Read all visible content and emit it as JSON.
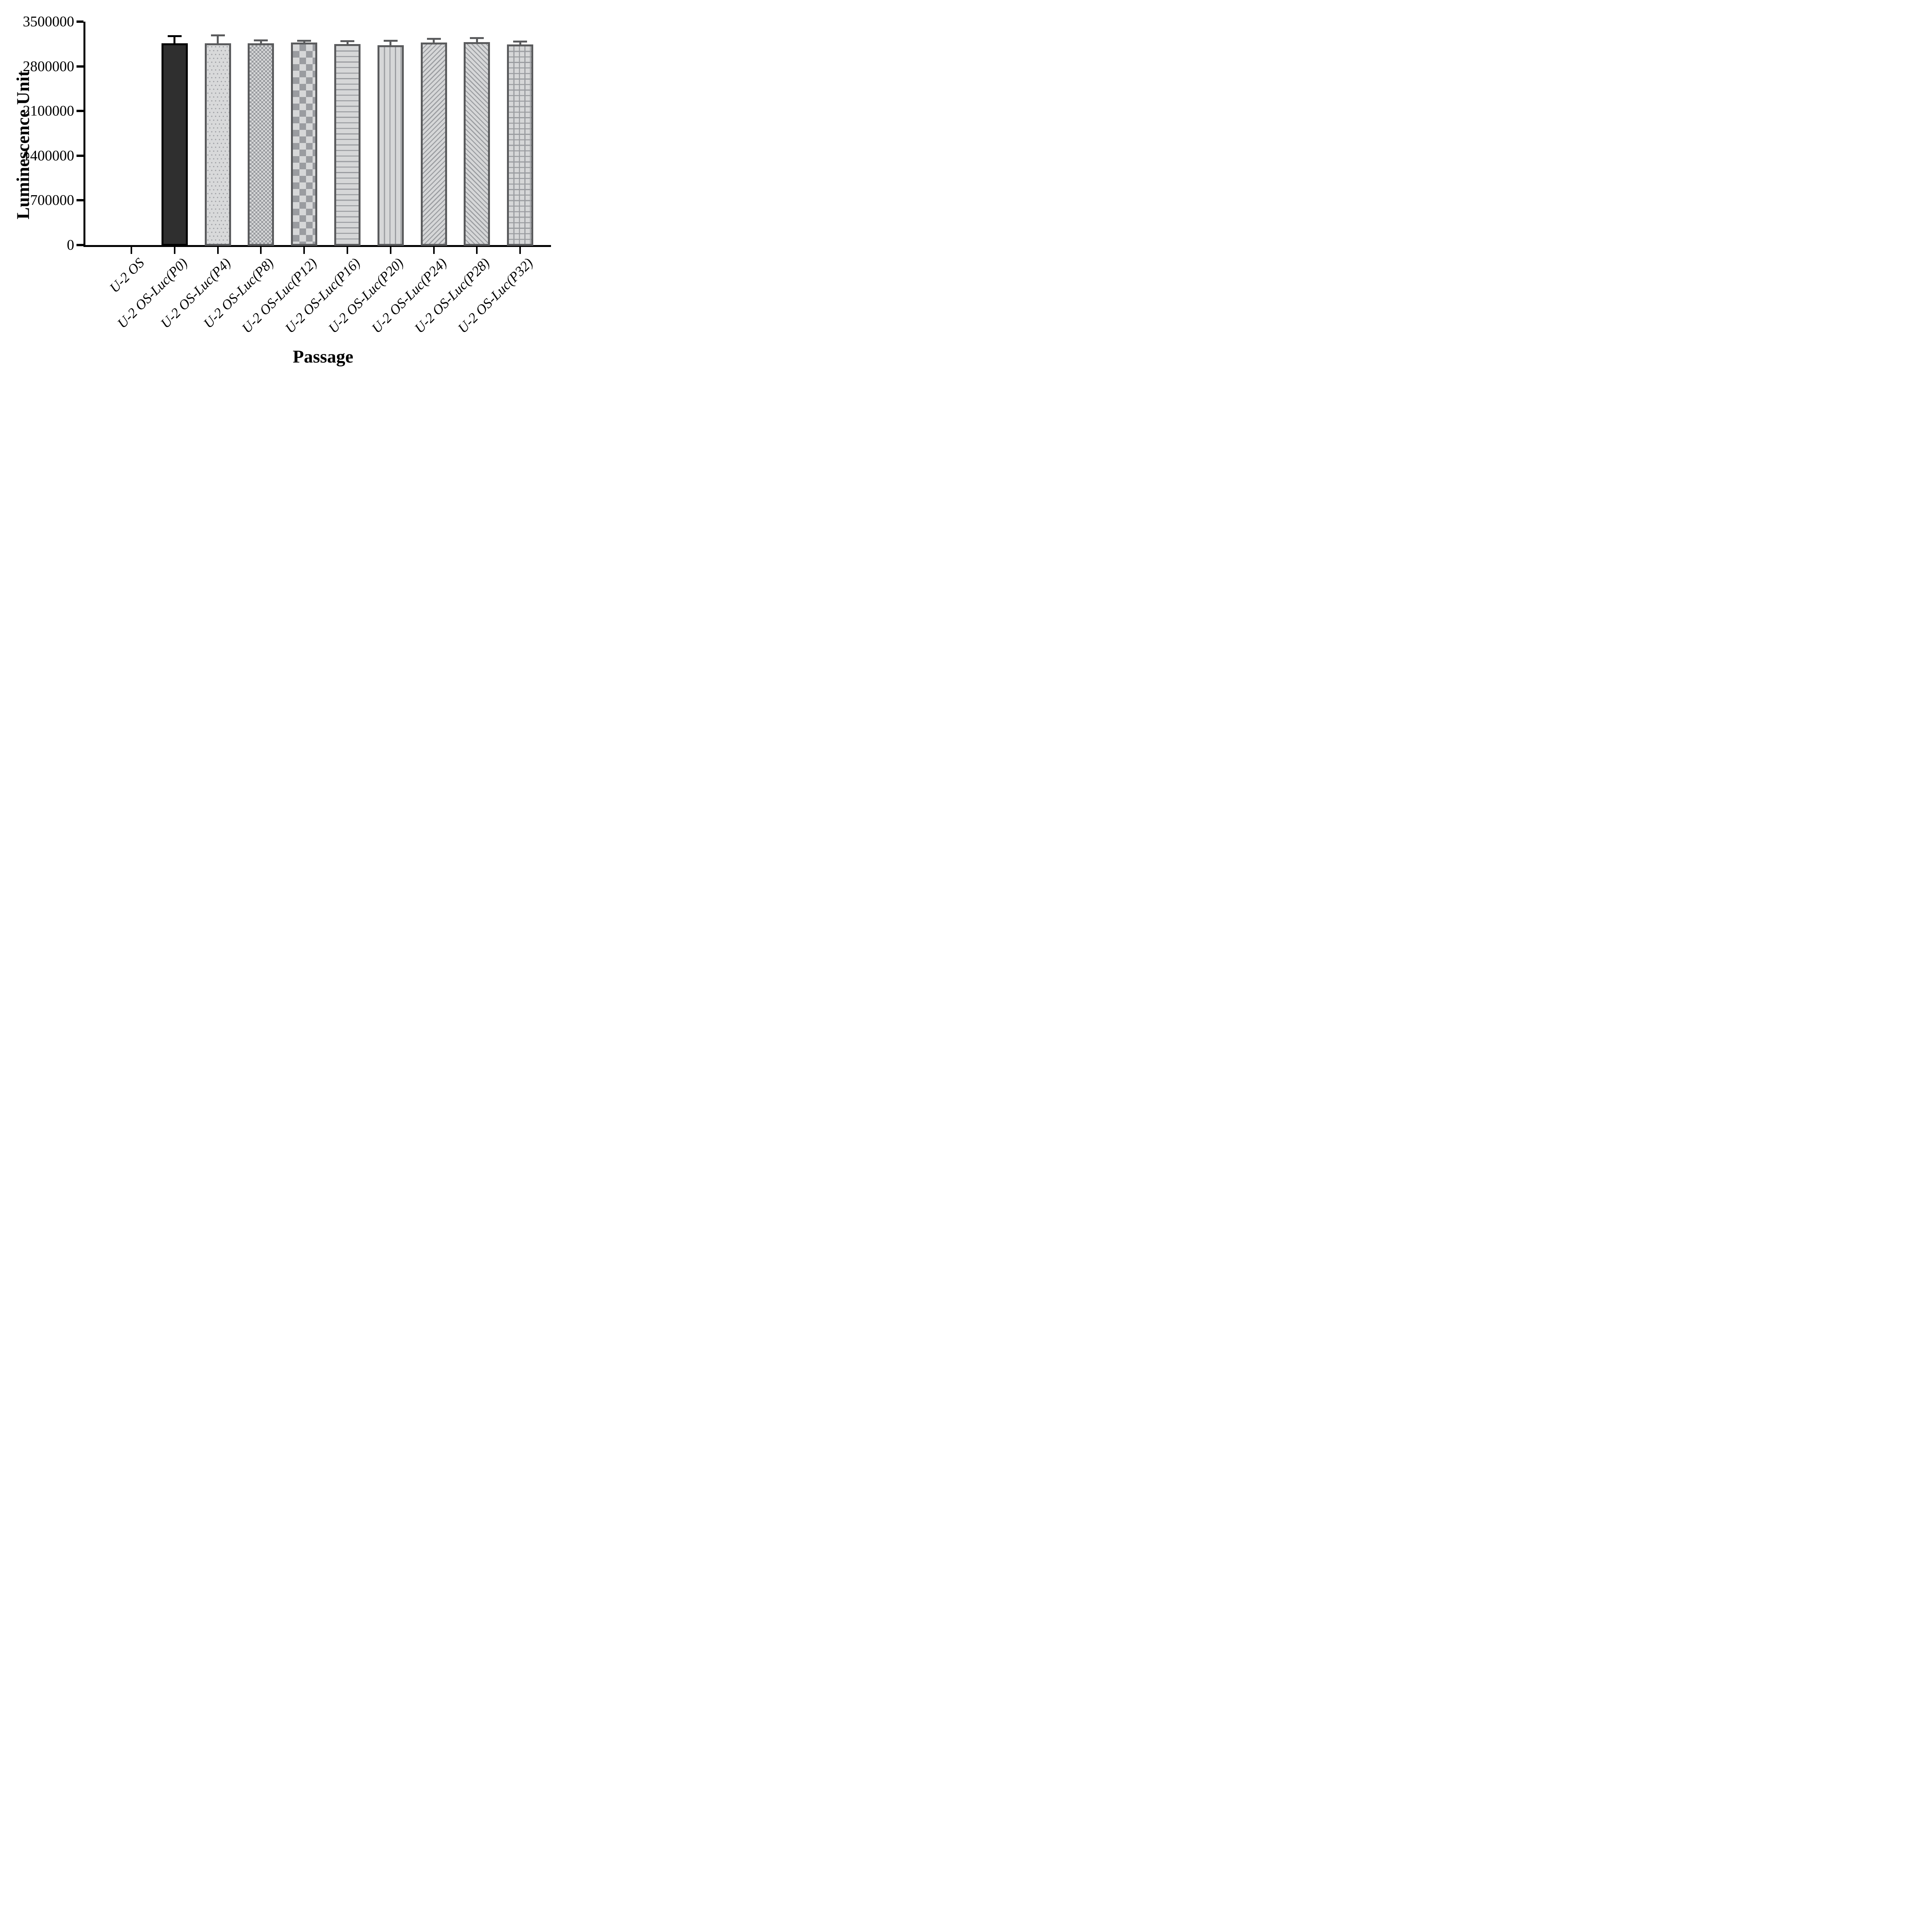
{
  "figure": {
    "kind": "scientific-bar-chart",
    "background": "#ffffff"
  },
  "chart_data": {
    "type": "bar",
    "title": "",
    "xlabel": "Passage",
    "ylabel": "Luminescence Unit",
    "ylim": [
      0,
      3500000
    ],
    "ytick_labels": [
      "0",
      "700000",
      "1400000",
      "2100000",
      "2800000",
      "3500000"
    ],
    "ytick_values": [
      0,
      700000,
      1400000,
      2100000,
      2800000,
      3500000
    ],
    "grid": false,
    "legend_position": "none",
    "categories": [
      "U-2 OS",
      "U-2 OS-Luc(P0)",
      "U-2 OS-Luc(P4)",
      "U-2 OS-Luc(P8)",
      "U-2 OS-Luc(P12)",
      "U-2 OS-Luc(P16)",
      "U-2 OS-Luc(P20)",
      "U-2 OS-Luc(P24)",
      "U-2 OS-Luc(P28)",
      "U-2 OS-Luc(P32)"
    ],
    "values": [
      0,
      3160000,
      3160000,
      3160000,
      3170000,
      3150000,
      3130000,
      3170000,
      3180000,
      3140000
    ],
    "errors_upper": [
      0,
      110000,
      125000,
      45000,
      30000,
      45000,
      70000,
      60000,
      60000,
      50000
    ],
    "error_style": "upper T-bar",
    "bar_patterns": [
      "none",
      "solid",
      "dots",
      "checker-small",
      "checker-large",
      "hlines",
      "vlines",
      "diag-up",
      "diag-down",
      "grid"
    ]
  },
  "style": {
    "axis_color": "#000000",
    "black_bar_fill": "#2f2f2f",
    "black_bar_border": "#000000",
    "bar_border": "#5a5b5d",
    "pattern_bg": "#d6d7d8",
    "pattern_bg_light": "#d8d9da",
    "pattern_fg": "#9a9ca0",
    "error_bar_gray": "#5a5b5d",
    "error_bar_black": "#000000",
    "text_color": "#000000"
  }
}
